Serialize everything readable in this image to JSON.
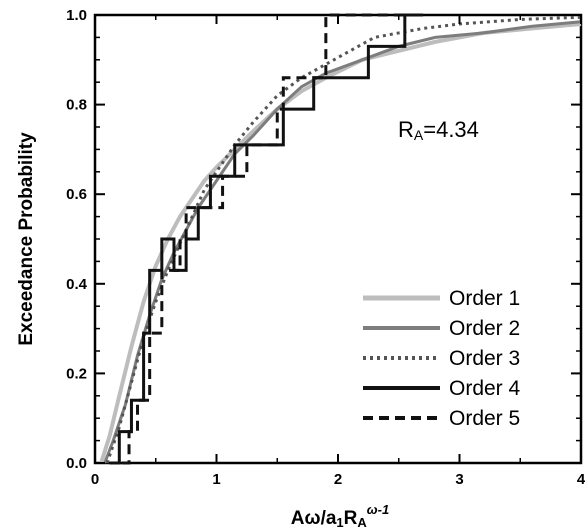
{
  "chart_data": {
    "type": "line",
    "xlabel": {
      "main": "Aω/a",
      "sub1": "1",
      "mid": "R",
      "sub2": "A",
      "sup": "ω-1"
    },
    "ylabel": "Exceedance Probability",
    "annotation": {
      "main": "R",
      "sub": "A",
      "rest": "=4.34"
    },
    "xlim": [
      0,
      4
    ],
    "ylim": [
      0,
      1
    ],
    "xticks": [
      "0",
      "1",
      "2",
      "3",
      "4"
    ],
    "yticks": [
      "0.0",
      "0.2",
      "0.4",
      "0.6",
      "0.8",
      "1.0"
    ],
    "legend_position": "bottom-right",
    "series": [
      {
        "name": "Order 1",
        "color": "#bdbdbd",
        "style": "solid",
        "width": 4,
        "step": false,
        "x": [
          0.05,
          0.12,
          0.2,
          0.3,
          0.4,
          0.5,
          0.6,
          0.7,
          0.8,
          0.9,
          1.0,
          1.15,
          1.3,
          1.5,
          1.7,
          1.9,
          2.2,
          2.5,
          2.8,
          3.2,
          3.6,
          4.0
        ],
        "y": [
          0.0,
          0.06,
          0.15,
          0.26,
          0.36,
          0.44,
          0.5,
          0.55,
          0.59,
          0.63,
          0.66,
          0.7,
          0.74,
          0.79,
          0.83,
          0.86,
          0.9,
          0.92,
          0.94,
          0.96,
          0.97,
          0.98
        ]
      },
      {
        "name": "Order 2",
        "color": "#7d7d7d",
        "style": "solid",
        "width": 3,
        "step": false,
        "x": [
          0.08,
          0.15,
          0.25,
          0.35,
          0.45,
          0.55,
          0.65,
          0.75,
          0.85,
          1.0,
          1.15,
          1.3,
          1.5,
          1.7,
          1.9,
          2.2,
          2.5,
          2.8,
          3.2,
          3.6,
          4.0
        ],
        "y": [
          0.0,
          0.05,
          0.13,
          0.24,
          0.33,
          0.41,
          0.47,
          0.52,
          0.57,
          0.63,
          0.69,
          0.73,
          0.79,
          0.84,
          0.87,
          0.9,
          0.93,
          0.95,
          0.96,
          0.975,
          0.985
        ]
      },
      {
        "name": "Order 3",
        "color": "#555555",
        "style": "dotted",
        "width": 3,
        "step": false,
        "x": [
          0.1,
          0.2,
          0.3,
          0.4,
          0.5,
          0.6,
          0.7,
          0.8,
          0.9,
          1.0,
          1.15,
          1.3,
          1.5,
          1.7,
          1.9,
          2.1,
          2.3,
          2.5,
          2.7,
          3.0,
          3.5,
          4.0
        ],
        "y": [
          0.0,
          0.08,
          0.18,
          0.28,
          0.36,
          0.43,
          0.49,
          0.55,
          0.61,
          0.65,
          0.71,
          0.76,
          0.82,
          0.86,
          0.89,
          0.92,
          0.95,
          0.96,
          0.97,
          0.98,
          0.99,
          0.995
        ]
      },
      {
        "name": "Order 4",
        "color": "#111111",
        "style": "solid",
        "width": 3,
        "step": true,
        "x": [
          0.12,
          0.2,
          0.3,
          0.4,
          0.45,
          0.55,
          0.65,
          0.75,
          0.85,
          0.95,
          1.05,
          1.15,
          1.35,
          1.45,
          1.55,
          1.65,
          1.8,
          1.95,
          2.1,
          2.25,
          2.4,
          2.55,
          2.7
        ],
        "y": [
          0.0,
          0.07,
          0.14,
          0.29,
          0.43,
          0.5,
          0.43,
          0.5,
          0.57,
          0.64,
          0.64,
          0.71,
          0.71,
          0.71,
          0.79,
          0.79,
          0.86,
          0.86,
          0.86,
          0.93,
          0.93,
          1.0,
          1.0
        ]
      },
      {
        "name": "Order 5",
        "color": "#111111",
        "style": "dashed",
        "width": 3,
        "step": true,
        "x": [
          0.22,
          0.28,
          0.35,
          0.45,
          0.55,
          0.65,
          0.7,
          0.75,
          0.85,
          0.95,
          1.05,
          1.25,
          1.35,
          1.5,
          1.55,
          1.65,
          1.8,
          1.9,
          2.0,
          2.2,
          2.4,
          2.6
        ],
        "y": [
          0.0,
          0.07,
          0.14,
          0.29,
          0.43,
          0.43,
          0.5,
          0.57,
          0.57,
          0.57,
          0.64,
          0.71,
          0.71,
          0.79,
          0.86,
          0.86,
          0.86,
          1.0,
          1.0,
          1.0,
          1.0,
          1.0
        ]
      }
    ]
  }
}
